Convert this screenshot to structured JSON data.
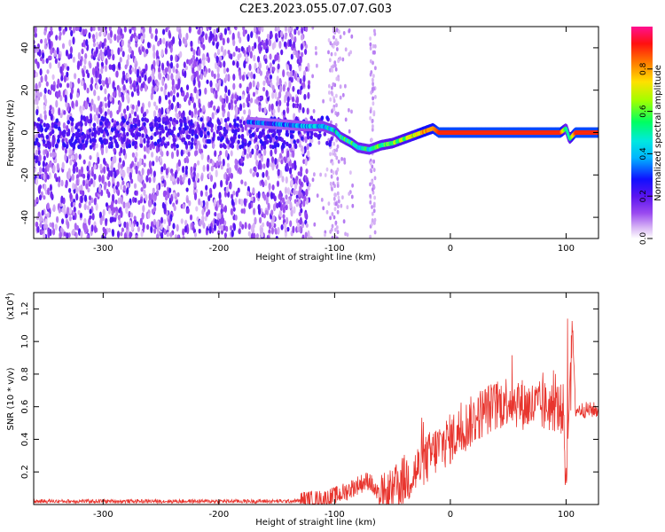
{
  "title": "C2E3.2023.055.07.07.G03",
  "chart_data": [
    {
      "type": "heatmap",
      "xlabel": "Height of straight line (km)",
      "ylabel": "Frequency (Hz)",
      "xlim": [
        -360,
        128
      ],
      "ylim": [
        -50,
        50
      ],
      "xticks": [
        -300,
        -200,
        -100,
        0,
        100
      ],
      "yticks": [
        -40,
        -20,
        0,
        20,
        40
      ],
      "colorbar": {
        "label": "Normalized spectral amplitude",
        "range": [
          0,
          1
        ],
        "ticks": [
          "0.0",
          "0.2",
          "0.4",
          "0.6",
          "0.8"
        ],
        "tick_values": [
          0,
          0.2,
          0.4,
          0.6,
          0.8
        ]
      },
      "ridge": {
        "x": [
          -175,
          -150,
          -125,
          -110,
          -100,
          -95,
          -85,
          -80,
          -70,
          -60,
          -50,
          -45,
          -35,
          -30,
          -25,
          -15,
          -10,
          0,
          50,
          95,
          100,
          103,
          108,
          128
        ],
        "freq": [
          5,
          4,
          3,
          3,
          1,
          -2,
          -5,
          -7,
          -8,
          -6,
          -5,
          -4,
          -2,
          -1,
          0,
          2,
          0,
          0,
          0,
          0,
          2,
          -3,
          0,
          0
        ],
        "amplitude": [
          0.3,
          0.3,
          0.35,
          0.4,
          0.45,
          0.5,
          0.55,
          0.5,
          0.5,
          0.55,
          0.6,
          0.6,
          0.65,
          0.7,
          0.8,
          0.8,
          0.9,
          0.9,
          0.9,
          0.9,
          0.5,
          0.5,
          0.9,
          0.9
        ]
      },
      "noise_region_x": [
        -360,
        -122
      ],
      "reference_line_freq": 0
    },
    {
      "type": "line",
      "xlabel": "Height of straight line (km)",
      "ylabel": "SNR (10 * v/v)",
      "scale_label": "(x10",
      "scale_exp": "4",
      "scale_suffix": ")",
      "xlim": [
        -360,
        128
      ],
      "ylim": [
        0,
        1.3
      ],
      "xticks": [
        -300,
        -200,
        -100,
        0,
        100
      ],
      "yticks": [
        "0.2",
        "0.4",
        "0.6",
        "0.8",
        "1.0",
        "1.2"
      ],
      "ytick_values": [
        0.2,
        0.4,
        0.6,
        0.8,
        1.0,
        1.2
      ],
      "series": [
        {
          "color": "#e8352e",
          "x": [
            -360,
            -200,
            -140,
            -110,
            -100,
            -90,
            -80,
            -70,
            -65,
            -60,
            -55,
            -50,
            -45,
            -40,
            -30,
            -20,
            -10,
            0,
            10,
            20,
            30,
            40,
            50,
            60,
            70,
            80,
            90,
            98,
            100,
            103,
            105,
            108,
            110,
            120,
            128
          ],
          "y": [
            0.02,
            0.02,
            0.02,
            0.03,
            0.05,
            0.08,
            0.12,
            0.15,
            0.08,
            0.03,
            0.04,
            0.05,
            0.12,
            0.15,
            0.2,
            0.28,
            0.35,
            0.4,
            0.46,
            0.52,
            0.58,
            0.6,
            0.65,
            0.62,
            0.6,
            0.6,
            0.6,
            0.58,
            0.05,
            0.7,
            1.2,
            0.58,
            0.58,
            0.58,
            0.58
          ]
        }
      ]
    }
  ]
}
